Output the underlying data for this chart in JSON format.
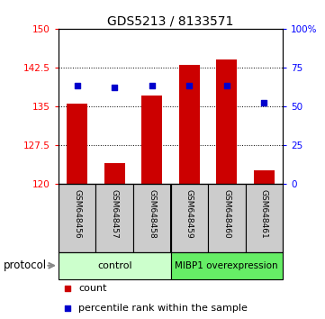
{
  "title": "GDS5213 / 8133571",
  "samples": [
    "GSM648456",
    "GSM648457",
    "GSM648458",
    "GSM648459",
    "GSM648460",
    "GSM648461"
  ],
  "bar_values": [
    135.5,
    124.0,
    137.0,
    143.0,
    144.0,
    122.5
  ],
  "bar_base": 120,
  "bar_color": "#cc0000",
  "percentile_values": [
    63,
    62,
    63,
    63,
    63,
    52
  ],
  "dot_color": "#0000cc",
  "ylim_left": [
    120,
    150
  ],
  "ylim_right": [
    0,
    100
  ],
  "yticks_left": [
    120,
    127.5,
    135,
    142.5,
    150
  ],
  "yticks_right": [
    0,
    25,
    50,
    75,
    100
  ],
  "ytick_labels_left": [
    "120",
    "127.5",
    "135",
    "142.5",
    "150"
  ],
  "ytick_labels_right": [
    "0",
    "25",
    "50",
    "75",
    "100%"
  ],
  "control_label": "control",
  "overexpression_label": "MIBP1 overexpression",
  "protocol_label": "protocol",
  "legend_count_label": "count",
  "legend_percentile_label": "percentile rank within the sample",
  "control_bg": "#ccffcc",
  "overexpression_bg": "#66ee66",
  "sample_bg": "#cccccc",
  "bar_width": 0.55
}
